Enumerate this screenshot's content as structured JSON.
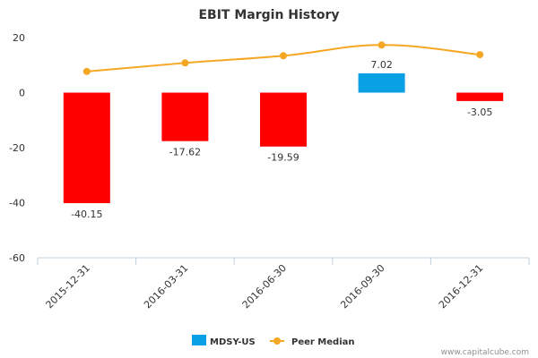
{
  "chart_data": {
    "type": "bar",
    "title": "EBIT Margin History",
    "categories": [
      "2015-12-31",
      "2016-03-31",
      "2016-06-30",
      "2016-09-30",
      "2016-12-31"
    ],
    "series": [
      {
        "name": "MDSY-US",
        "type": "bar",
        "values": [
          -40.15,
          -17.62,
          -19.59,
          7.02,
          -3.05
        ],
        "data_labels": [
          "-40.15",
          "-17.62",
          "-19.59",
          "7.02",
          "-3.05"
        ],
        "color_positive": "#0aa0e6",
        "color_negative": "#ff0000"
      },
      {
        "name": "Peer Median",
        "type": "line",
        "values": [
          7.7,
          10.8,
          13.4,
          17.3,
          13.8
        ],
        "color": "#f5a623"
      }
    ],
    "ylim": [
      -60,
      20
    ],
    "yticks": [
      20,
      0,
      -20,
      -40,
      -60
    ],
    "xlabel": "",
    "ylabel": "",
    "grid": false,
    "legend_position": "bottom"
  },
  "credit": "www.capitalcube.com"
}
